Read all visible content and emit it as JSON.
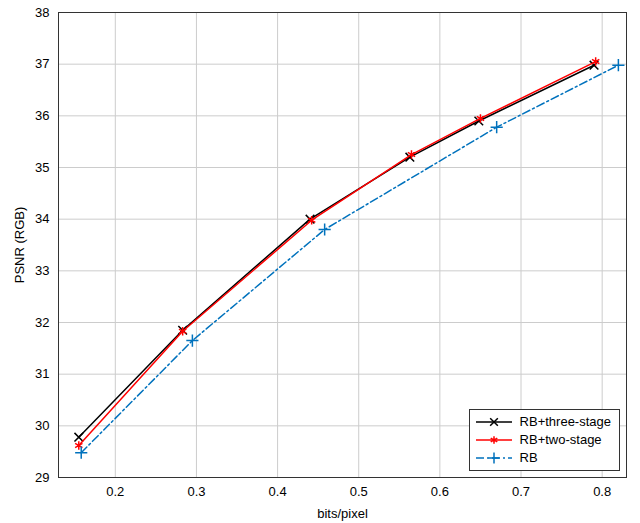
{
  "chart_data": {
    "type": "line",
    "x_label": "bits/pixel",
    "y_label": "PSNR (RGB)",
    "xlim": [
      0.13,
      0.83
    ],
    "xticks": [
      0.2,
      0.3,
      0.4,
      0.5,
      0.6,
      0.7,
      0.8
    ],
    "ylim": [
      29,
      38
    ],
    "yticks": [
      29,
      30,
      31,
      32,
      33,
      34,
      35,
      36,
      37,
      38
    ],
    "grid": true,
    "legend": "lower right",
    "series": [
      {
        "name": "RB+three-stage",
        "color": "#000000",
        "marker": "times",
        "line_style": "solid",
        "x": [
          0.155,
          0.283,
          0.44,
          0.563,
          0.648,
          0.79
        ],
        "values": [
          29.78,
          31.85,
          34.0,
          35.2,
          35.9,
          36.98
        ]
      },
      {
        "name": "RB+two-stage",
        "color": "#ff0000",
        "marker": "asterisk",
        "line_style": "solid",
        "x": [
          0.155,
          0.283,
          0.442,
          0.565,
          0.65,
          0.792
        ],
        "values": [
          29.62,
          31.83,
          33.98,
          35.25,
          35.95,
          37.05
        ]
      },
      {
        "name": "RB",
        "color": "#0072bd",
        "marker": "plus",
        "line_style": "dashdot",
        "x": [
          0.158,
          0.295,
          0.458,
          0.67,
          0.82
        ],
        "values": [
          29.48,
          31.65,
          33.8,
          35.78,
          36.98
        ]
      }
    ]
  }
}
